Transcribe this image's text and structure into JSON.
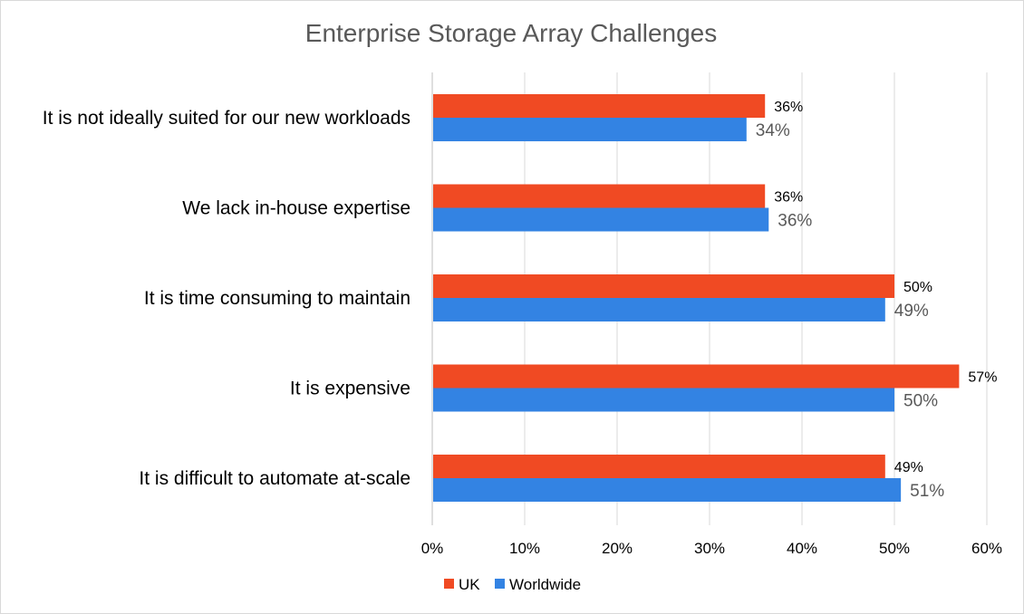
{
  "chart_data": {
    "type": "bar",
    "orientation": "horizontal",
    "title": "Enterprise Storage Array Challenges",
    "categories": [
      "It is not ideally suited for our new workloads",
      "We lack in-house expertise",
      "It is time consuming to maintain",
      "It is expensive",
      "It is difficult to automate at-scale"
    ],
    "series": [
      {
        "name": "UK",
        "color": "#f04a23",
        "values": [
          36,
          36,
          50,
          57,
          49
        ],
        "labels": [
          "36%",
          "36%",
          "50%",
          "57%",
          "49%"
        ]
      },
      {
        "name": "Worldwide",
        "color": "#3383e3",
        "values": [
          34,
          36.4,
          49,
          50,
          50.7
        ],
        "labels": [
          "34%",
          "36%",
          "49%",
          "50%",
          "51%"
        ]
      }
    ],
    "xlim": [
      0,
      60
    ],
    "xticks": [
      0,
      10,
      20,
      30,
      40,
      50,
      60
    ],
    "xtick_labels": [
      "0%",
      "10%",
      "20%",
      "30%",
      "40%",
      "50%",
      "60%"
    ],
    "grid": "vertical",
    "legend_position": "bottom"
  }
}
